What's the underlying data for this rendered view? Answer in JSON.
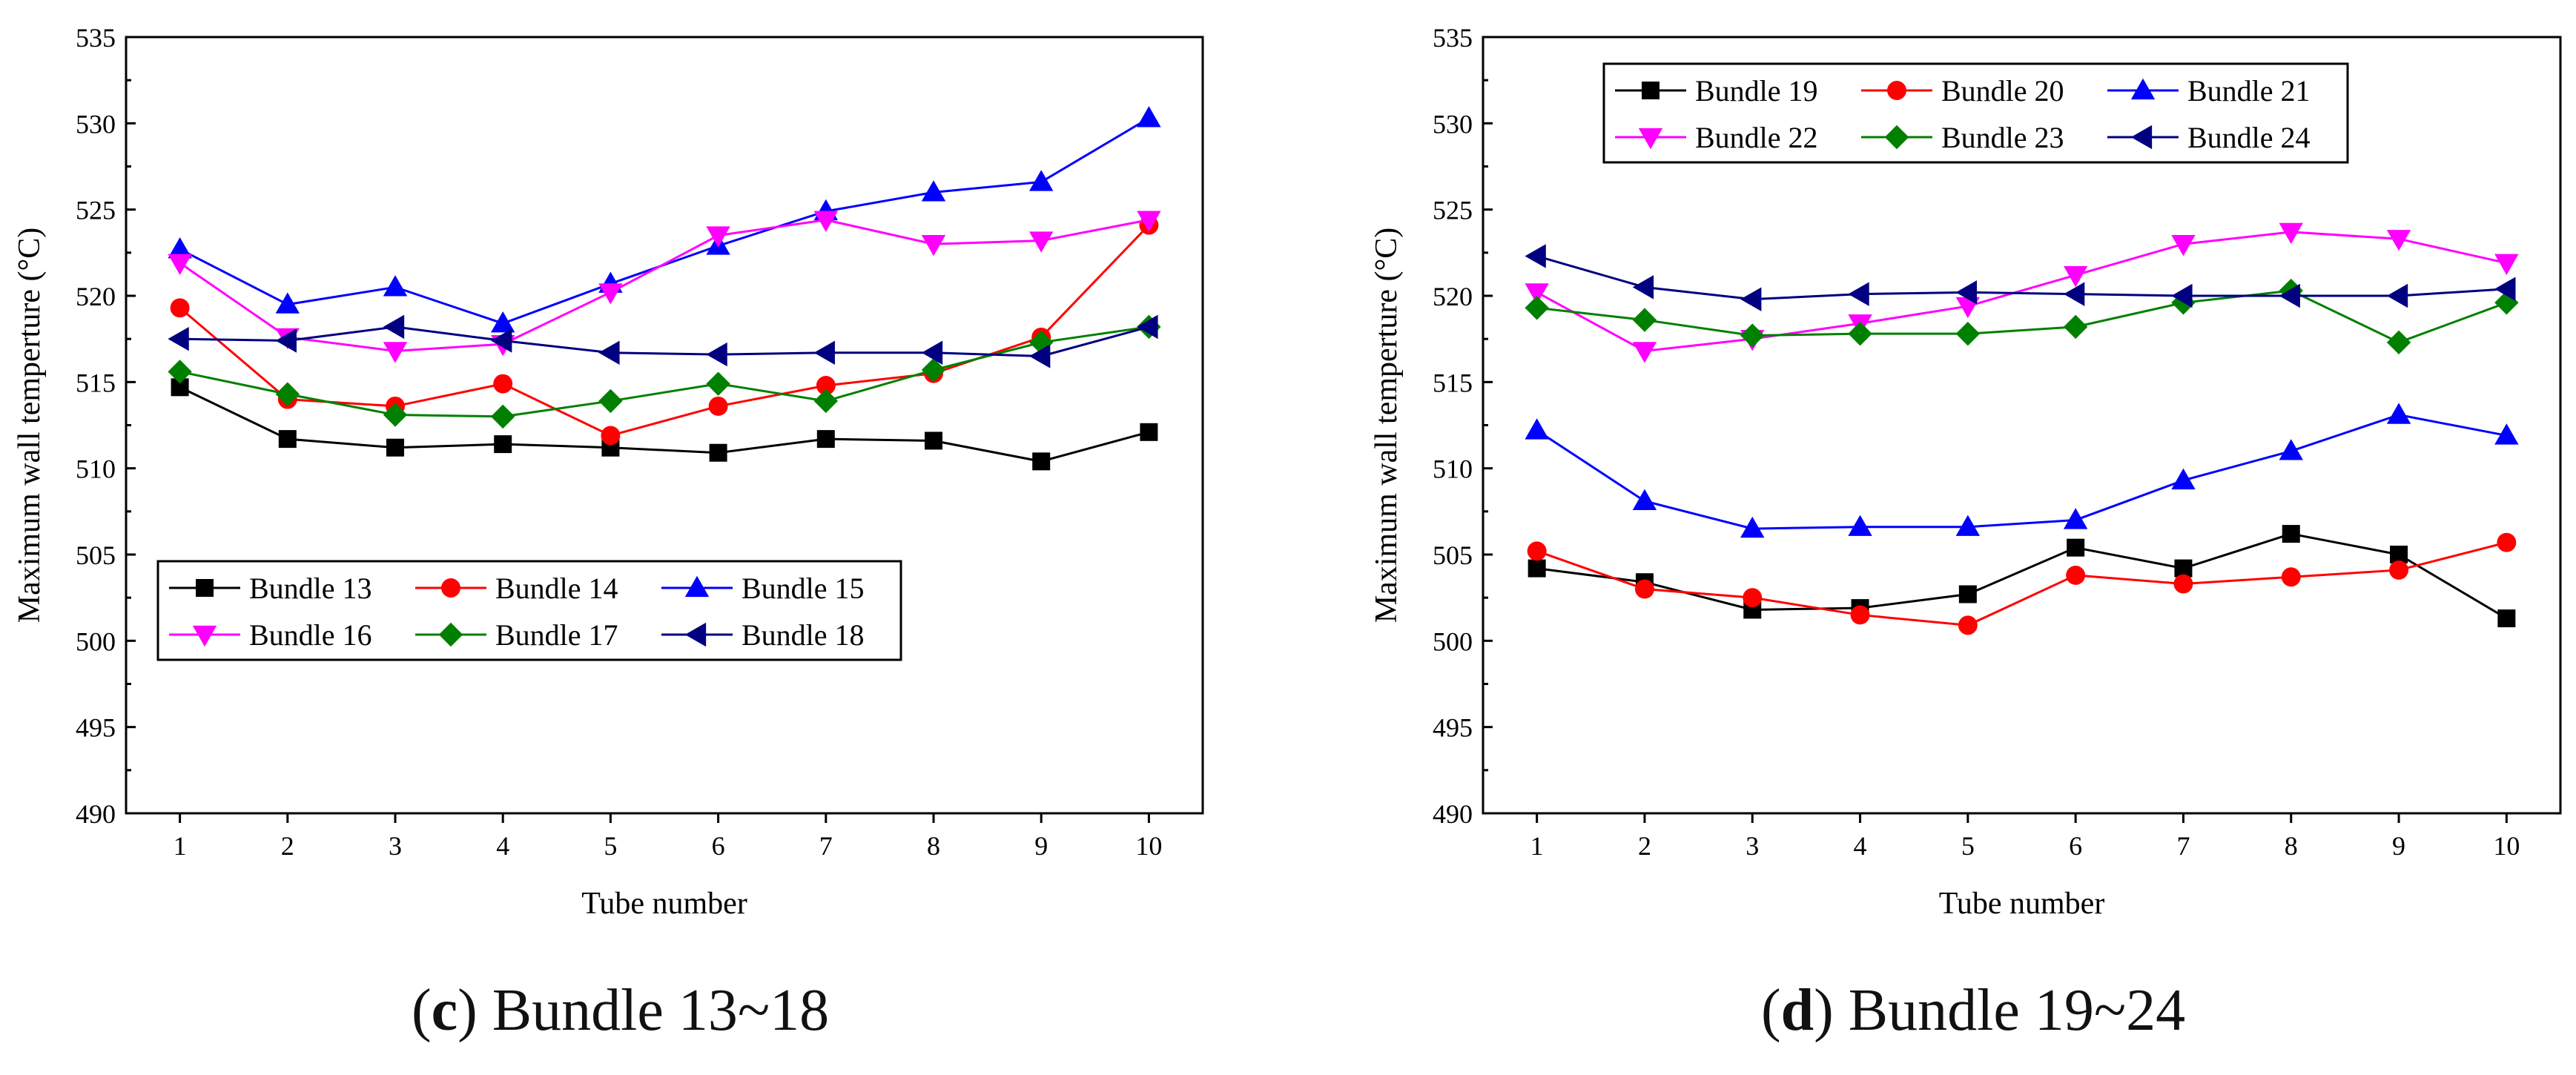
{
  "chart_data": [
    {
      "type": "line",
      "title": "",
      "xlabel": "Tube number",
      "ylabel": "Maximum wall temperture (°C)",
      "xlim": [
        0.5,
        10.5
      ],
      "ylim": [
        490,
        535
      ],
      "x": [
        1,
        2,
        3,
        4,
        5,
        6,
        7,
        8,
        9,
        10
      ],
      "xticks": [
        "1",
        "2",
        "3",
        "4",
        "5",
        "6",
        "7",
        "8",
        "9",
        "10"
      ],
      "yticks": [
        "490",
        "495",
        "500",
        "505",
        "510",
        "515",
        "520",
        "525",
        "530",
        "535"
      ],
      "legend_position": "bottom-left",
      "series": [
        {
          "name": "Bundle 13",
          "color": "#000000",
          "marker": "square",
          "values": [
            514.7,
            511.7,
            511.2,
            511.4,
            511.2,
            510.9,
            511.7,
            511.6,
            510.4,
            512.1
          ]
        },
        {
          "name": "Bundle 14",
          "color": "#ff0000",
          "marker": "circle",
          "values": [
            519.3,
            514.0,
            513.6,
            514.9,
            511.9,
            513.6,
            514.8,
            515.5,
            517.6,
            524.1
          ]
        },
        {
          "name": "Bundle 15",
          "color": "#0000ff",
          "marker": "triangle-up",
          "values": [
            522.7,
            519.5,
            520.5,
            518.4,
            520.7,
            522.9,
            524.9,
            526.0,
            526.6,
            530.3
          ]
        },
        {
          "name": "Bundle 16",
          "color": "#ff00ff",
          "marker": "triangle-down",
          "values": [
            521.9,
            517.6,
            516.8,
            517.2,
            520.2,
            523.5,
            524.4,
            523.0,
            523.2,
            524.4
          ]
        },
        {
          "name": "Bundle 17",
          "color": "#008000",
          "marker": "diamond",
          "values": [
            515.6,
            514.3,
            513.1,
            513.0,
            513.9,
            514.9,
            513.9,
            515.7,
            517.3,
            518.2
          ]
        },
        {
          "name": "Bundle 18",
          "color": "#000080",
          "marker": "triangle-left",
          "values": [
            517.5,
            517.4,
            518.2,
            517.4,
            516.7,
            516.6,
            516.7,
            516.7,
            516.5,
            518.2
          ]
        }
      ]
    },
    {
      "type": "line",
      "title": "",
      "xlabel": "Tube number",
      "ylabel": "Maximum wall temperture (°C)",
      "xlim": [
        0.5,
        10.5
      ],
      "ylim": [
        490,
        535
      ],
      "x": [
        1,
        2,
        3,
        4,
        5,
        6,
        7,
        8,
        9,
        10
      ],
      "xticks": [
        "1",
        "2",
        "3",
        "4",
        "5",
        "6",
        "7",
        "8",
        "9",
        "10"
      ],
      "yticks": [
        "490",
        "495",
        "500",
        "505",
        "510",
        "515",
        "520",
        "525",
        "530",
        "535"
      ],
      "legend_position": "top-left",
      "series": [
        {
          "name": "Bundle 19",
          "color": "#000000",
          "marker": "square",
          "values": [
            504.2,
            503.4,
            501.8,
            501.9,
            502.7,
            505.4,
            504.2,
            506.2,
            505.0,
            501.3
          ]
        },
        {
          "name": "Bundle 20",
          "color": "#ff0000",
          "marker": "circle",
          "values": [
            505.2,
            503.0,
            502.5,
            501.5,
            500.9,
            503.8,
            503.3,
            503.7,
            504.1,
            505.7
          ]
        },
        {
          "name": "Bundle 21",
          "color": "#0000ff",
          "marker": "triangle-up",
          "values": [
            512.2,
            508.1,
            506.5,
            506.6,
            506.6,
            507.0,
            509.3,
            511.0,
            513.1,
            511.9
          ]
        },
        {
          "name": "Bundle 22",
          "color": "#ff00ff",
          "marker": "triangle-down",
          "values": [
            520.2,
            516.8,
            517.5,
            518.4,
            519.4,
            521.2,
            523.0,
            523.7,
            523.3,
            521.9
          ]
        },
        {
          "name": "Bundle 23",
          "color": "#008000",
          "marker": "diamond",
          "values": [
            519.3,
            518.6,
            517.7,
            517.8,
            517.8,
            518.2,
            519.6,
            520.3,
            517.3,
            519.6
          ]
        },
        {
          "name": "Bundle 24",
          "color": "#000080",
          "marker": "triangle-left",
          "values": [
            522.3,
            520.5,
            519.8,
            520.1,
            520.2,
            520.1,
            520.0,
            520.0,
            520.0,
            520.4
          ]
        }
      ]
    }
  ],
  "captions": [
    {
      "letter": "c",
      "text": "Bundle 13~18"
    },
    {
      "letter": "d",
      "text": "Bundle 19~24"
    }
  ]
}
